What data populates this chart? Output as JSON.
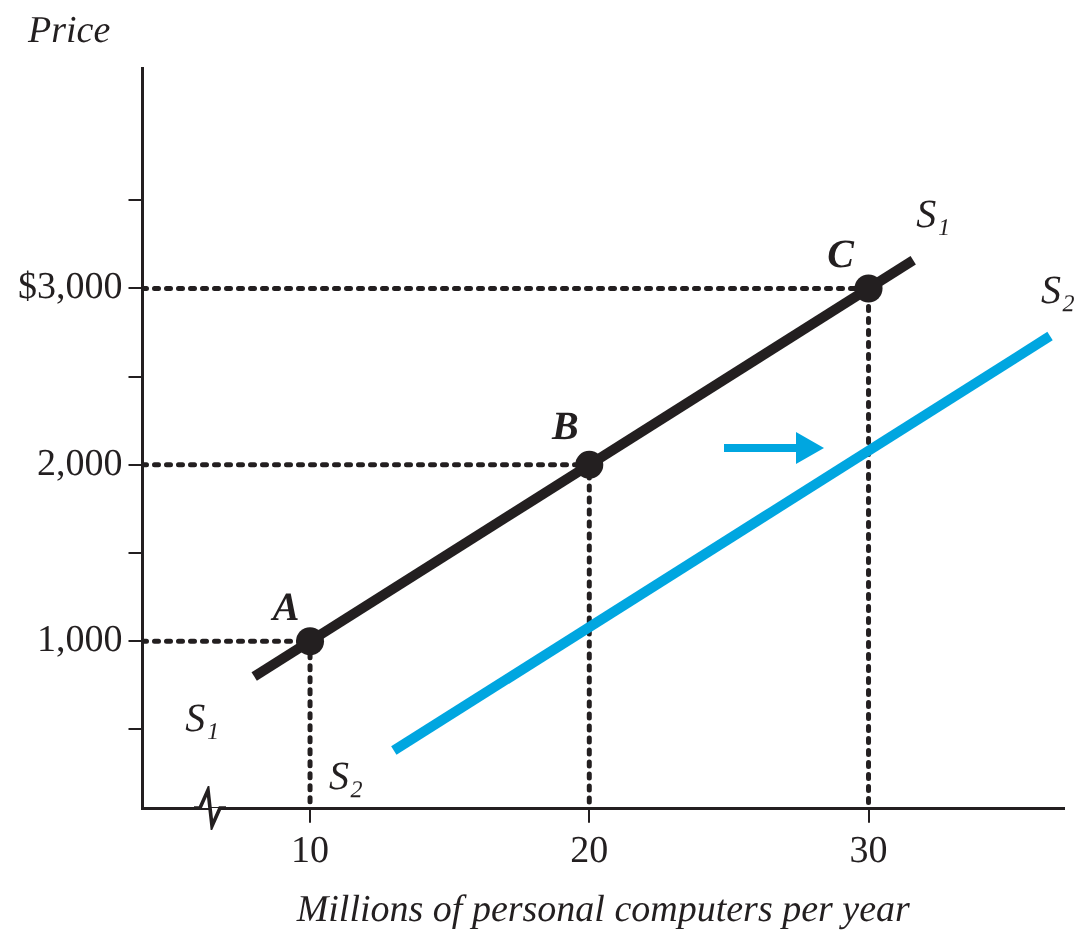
{
  "chart_data": {
    "type": "line",
    "xlabel": "Millions of personal computers per year",
    "ylabel": "Price",
    "xlim": [
      4,
      37
    ],
    "xticks": [
      10,
      20,
      30
    ],
    "ylim": [
      50,
      4250
    ],
    "yticks": [
      {
        "value": 500,
        "label": null
      },
      {
        "value": 1000,
        "label": "1,000"
      },
      {
        "value": 1500,
        "label": null
      },
      {
        "value": 2000,
        "label": "2,000"
      },
      {
        "value": 2500,
        "label": null
      },
      {
        "value": 3000,
        "label": "$3,000"
      },
      {
        "value": 3500,
        "label": null
      }
    ],
    "grid": false,
    "legend": false,
    "series": [
      {
        "color": "#231f20",
        "x": [
          8,
          31.6
        ],
        "values": [
          800,
          3160
        ],
        "line_style": "solid",
        "marker": "none"
      },
      {
        "color": "#00a6e0",
        "x": [
          13,
          36.5
        ],
        "values": [
          380,
          2730
        ],
        "line_style": "solid",
        "marker": "none"
      },
      {
        "type": "scatter",
        "color": "#231f20",
        "x": [
          10,
          20,
          30
        ],
        "values": [
          1000,
          2000,
          3000
        ],
        "marker": "circle"
      },
      {
        "color": "#231f20",
        "x": [
          4,
          10,
          10
        ],
        "values": [
          1000,
          1000,
          50
        ],
        "line_style": "dotted",
        "marker": "none"
      },
      {
        "color": "#231f20",
        "x": [
          4,
          20,
          20
        ],
        "values": [
          2000,
          2000,
          50
        ],
        "line_style": "dotted",
        "marker": "none"
      },
      {
        "color": "#231f20",
        "x": [
          4,
          30,
          30
        ],
        "values": [
          3000,
          3000,
          50
        ],
        "line_style": "dotted",
        "marker": "none"
      }
    ],
    "annotations": [
      {
        "text": "A",
        "x": 10,
        "y": 1000
      },
      {
        "text": "B",
        "x": 20,
        "y": 2000
      },
      {
        "text": "C",
        "x": 30,
        "y": 3000
      },
      {
        "text": "S₁",
        "x": 8,
        "y": 800
      },
      {
        "text": "S₁",
        "x": 31.6,
        "y": 3160
      },
      {
        "text": "S₂",
        "x": 13,
        "y": 380
      },
      {
        "text": "S₂",
        "x": 36.5,
        "y": 2730
      }
    ]
  }
}
